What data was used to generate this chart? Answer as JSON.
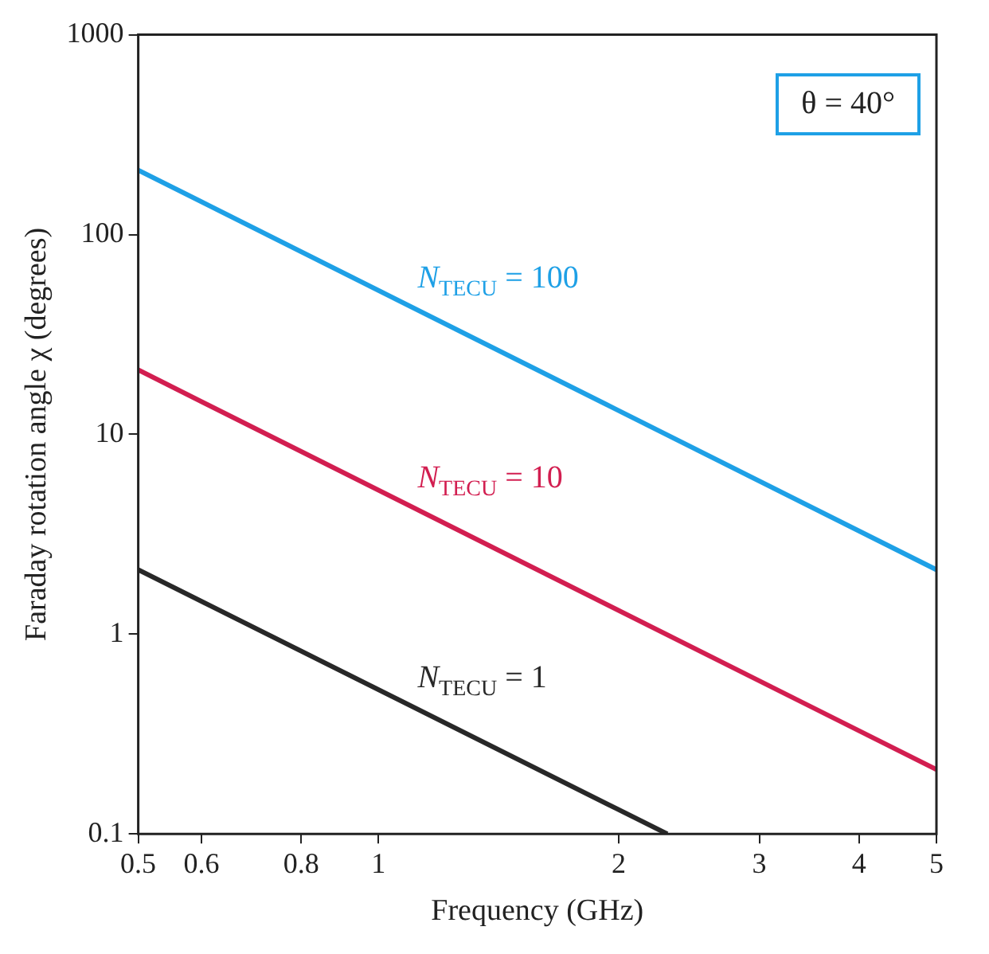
{
  "chart_data": {
    "type": "line",
    "xlabel": "Frequency (GHz)",
    "ylabel": "Faraday rotation angle χ (degrees)",
    "log": "xy",
    "grid": false,
    "legend": false,
    "marker": "none",
    "line_style": "solid",
    "x": [
      0.5,
      5
    ],
    "xlim": [
      0.5,
      5
    ],
    "xticks": [
      0.5,
      0.6,
      0.8,
      1,
      2,
      3,
      4,
      5
    ],
    "ylim": [
      0.1,
      1000
    ],
    "yticks": [
      0.1,
      1,
      10,
      100,
      1000
    ],
    "series": [
      {
        "name": "N$_{TECU}$ = 100",
        "color": "#1ea0e6",
        "values": [
          210,
          2.1
        ]
      },
      {
        "name": "N$_{TECU}$ = 10",
        "color": "#d21e50",
        "values": [
          21,
          0.21
        ]
      },
      {
        "name": "N$_{TECU}$ = 1",
        "color": "#282828",
        "x": [
          0.5,
          2.3
        ],
        "values": [
          2.1,
          0.1
        ]
      }
    ],
    "annotations": [
      "θ = 40°"
    ]
  }
}
